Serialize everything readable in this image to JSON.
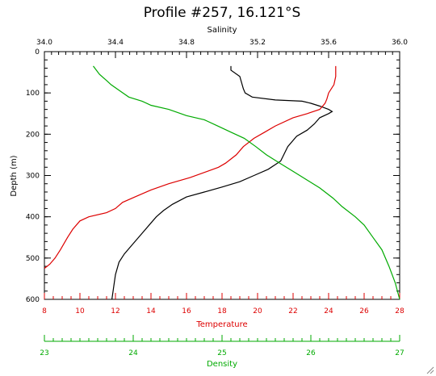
{
  "chart_data": {
    "type": "line",
    "title": "Profile #257, 16.121°S",
    "y_axis": {
      "label": "Depth (m)",
      "range": [
        0,
        600
      ],
      "inverted": true,
      "ticks": [
        "0",
        "100",
        "200",
        "300",
        "400",
        "500",
        "600"
      ]
    },
    "x_axes": [
      {
        "id": "salinity",
        "label": "Salinity",
        "position": "top",
        "color": "#000000",
        "range": [
          34.0,
          36.0
        ],
        "ticks": [
          "34.0",
          "34.4",
          "34.8",
          "35.2",
          "35.6",
          "36.0"
        ]
      },
      {
        "id": "temperature",
        "label": "Temperature",
        "position": "bottom",
        "color": "#dd0000",
        "range": [
          8,
          28
        ],
        "ticks": [
          "8",
          "10",
          "12",
          "14",
          "16",
          "18",
          "20",
          "22",
          "24",
          "26",
          "28"
        ]
      },
      {
        "id": "density",
        "label": "Density",
        "position": "bottom-offset",
        "color": "#00aa00",
        "range": [
          23,
          27
        ],
        "ticks": [
          "23",
          "24",
          "25",
          "26",
          "27"
        ]
      }
    ],
    "series": [
      {
        "axis": "salinity",
        "color": "#000000",
        "points": [
          [
            35.05,
            35
          ],
          [
            35.05,
            45
          ],
          [
            35.1,
            60
          ],
          [
            35.12,
            90
          ],
          [
            35.13,
            100
          ],
          [
            35.17,
            110
          ],
          [
            35.3,
            117
          ],
          [
            35.45,
            120
          ],
          [
            35.5,
            125
          ],
          [
            35.55,
            132
          ],
          [
            35.6,
            140
          ],
          [
            35.62,
            145
          ],
          [
            35.6,
            150
          ],
          [
            35.55,
            160
          ],
          [
            35.52,
            175
          ],
          [
            35.48,
            190
          ],
          [
            35.42,
            205
          ],
          [
            35.37,
            230
          ],
          [
            35.33,
            265
          ],
          [
            35.26,
            285
          ],
          [
            35.18,
            300
          ],
          [
            35.1,
            315
          ],
          [
            35.0,
            328
          ],
          [
            34.9,
            340
          ],
          [
            34.8,
            352
          ],
          [
            34.72,
            370
          ],
          [
            34.67,
            385
          ],
          [
            34.63,
            400
          ],
          [
            34.6,
            415
          ],
          [
            34.55,
            440
          ],
          [
            34.5,
            465
          ],
          [
            34.45,
            490
          ],
          [
            34.42,
            510
          ],
          [
            34.4,
            540
          ],
          [
            34.39,
            570
          ],
          [
            34.38,
            600
          ]
        ]
      },
      {
        "axis": "temperature",
        "color": "#dd0000",
        "points": [
          [
            24.4,
            35
          ],
          [
            24.4,
            60
          ],
          [
            24.3,
            80
          ],
          [
            24.0,
            100
          ],
          [
            23.9,
            115
          ],
          [
            23.8,
            125
          ],
          [
            23.5,
            140
          ],
          [
            22.8,
            150
          ],
          [
            22.0,
            160
          ],
          [
            21.0,
            180
          ],
          [
            20.4,
            195
          ],
          [
            19.8,
            210
          ],
          [
            19.2,
            230
          ],
          [
            18.8,
            250
          ],
          [
            18.2,
            270
          ],
          [
            17.8,
            280
          ],
          [
            16.2,
            305
          ],
          [
            15.0,
            320
          ],
          [
            14.0,
            335
          ],
          [
            13.2,
            350
          ],
          [
            12.4,
            365
          ],
          [
            12.0,
            380
          ],
          [
            11.5,
            390
          ],
          [
            10.5,
            400
          ],
          [
            10.0,
            410
          ],
          [
            9.6,
            430
          ],
          [
            9.3,
            450
          ],
          [
            8.9,
            480
          ],
          [
            8.6,
            500
          ],
          [
            8.3,
            515
          ],
          [
            8.0,
            525
          ]
        ]
      },
      {
        "axis": "density",
        "color": "#00aa00",
        "points": [
          [
            23.55,
            35
          ],
          [
            23.62,
            55
          ],
          [
            23.7,
            70
          ],
          [
            23.75,
            80
          ],
          [
            23.85,
            95
          ],
          [
            23.95,
            110
          ],
          [
            24.1,
            120
          ],
          [
            24.2,
            130
          ],
          [
            24.4,
            140
          ],
          [
            24.6,
            155
          ],
          [
            24.8,
            165
          ],
          [
            24.95,
            180
          ],
          [
            25.1,
            195
          ],
          [
            25.25,
            210
          ],
          [
            25.38,
            230
          ],
          [
            25.5,
            250
          ],
          [
            25.65,
            270
          ],
          [
            25.8,
            290
          ],
          [
            25.95,
            310
          ],
          [
            26.1,
            330
          ],
          [
            26.25,
            355
          ],
          [
            26.35,
            375
          ],
          [
            26.5,
            400
          ],
          [
            26.6,
            420
          ],
          [
            26.7,
            450
          ],
          [
            26.8,
            480
          ],
          [
            26.88,
            520
          ],
          [
            26.95,
            560
          ],
          [
            27.0,
            600
          ]
        ]
      }
    ]
  }
}
